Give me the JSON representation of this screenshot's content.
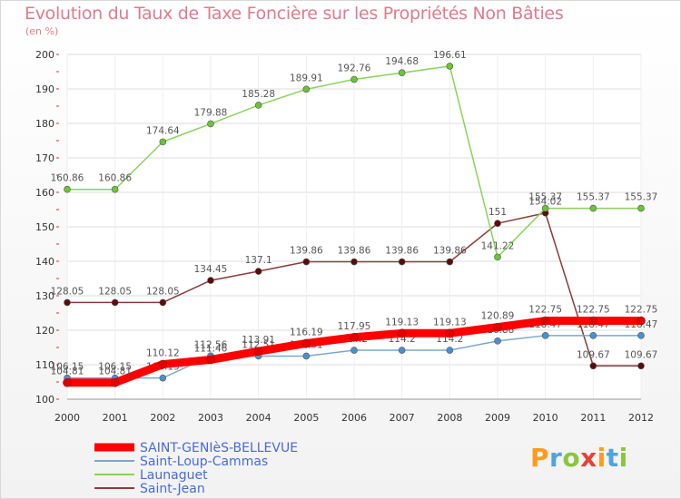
{
  "chart_data": {
    "type": "line",
    "title": "Evolution du Taux de Taxe Foncière sur les Propriétés Non Bâties",
    "ylabel": "(en %)",
    "ylim": [
      100,
      200
    ],
    "yticks": [
      "100",
      "110",
      "120",
      "130",
      "140",
      "150",
      "160",
      "170",
      "180",
      "190",
      "200"
    ],
    "x": [
      "2000",
      "2001",
      "2002",
      "2003",
      "2004",
      "2005",
      "2006",
      "2007",
      "2008",
      "2009",
      "2010",
      "2011",
      "2012"
    ],
    "series": [
      {
        "name": "Saint-Jean",
        "color": "#8b3a3a",
        "marker": "#5a0c0c",
        "values": [
          128.05,
          128.05,
          128.05,
          134.45,
          137.1,
          139.86,
          139.86,
          139.86,
          139.86,
          151,
          154.02,
          109.67,
          109.67
        ],
        "labels": [
          "128.05",
          "128.05",
          "128.05",
          "134.45",
          "137.1",
          "139.86",
          "139.86",
          "139.86",
          "139.86",
          "151",
          "154.02",
          "109.67",
          "109.67"
        ]
      },
      {
        "name": "Launaguet",
        "color": "#88d35a",
        "marker": "#6cc436",
        "values": [
          160.86,
          160.86,
          174.64,
          179.88,
          185.28,
          189.91,
          192.76,
          194.68,
          196.61,
          141.22,
          155.37,
          155.37,
          155.37
        ],
        "labels": [
          "160.86",
          "160.86",
          "174.64",
          "179.88",
          "185.28",
          "189.91",
          "192.76",
          "194.68",
          "196.61",
          "141.22",
          "155.37",
          "155.37",
          "155.37"
        ]
      },
      {
        "name": "Saint-Loup-Cammas",
        "color": "#7ba7cc",
        "marker": "#4a90d0",
        "values": [
          106.15,
          106.15,
          106.15,
          112.56,
          112.51,
          112.51,
          114.2,
          114.2,
          114.2,
          116.88,
          118.47,
          118.47,
          118.47
        ],
        "labels": [
          "106.15",
          "106.15",
          "106.15",
          "112.56",
          "112.51",
          "112.51",
          "114.2",
          "114.2",
          "114.2",
          "116.88",
          "118.47",
          "118.47",
          "118.47"
        ]
      },
      {
        "name": "SAINT-GENIèS-BELLEVUE",
        "color": "#ff0000",
        "marker": "#e00000",
        "values": [
          104.81,
          104.81,
          110.12,
          111.46,
          113.91,
          116.19,
          117.95,
          119.13,
          119.13,
          120.89,
          122.75,
          122.75,
          122.75
        ],
        "labels": [
          "104.81",
          "104.81",
          "110.12",
          "111.46",
          "113.91",
          "116.19",
          "117.95",
          "119.13",
          "119.13",
          "120.89",
          "122.75",
          "122.75",
          "122.75"
        ]
      }
    ],
    "legend_order": [
      "SAINT-GENIèS-BELLEVUE",
      "Saint-Loup-Cammas",
      "Launaguet",
      "Saint-Jean"
    ],
    "legend_position": "bottom-left"
  },
  "logo": {
    "letters": [
      "P",
      "r",
      "o",
      "x",
      "i",
      "t",
      "i"
    ],
    "colors": [
      "#ff9a1f",
      "#4fa3e0",
      "#8bc53f",
      "#e2443a",
      "#ff9a1f",
      "#4fa3e0",
      "#8bc53f"
    ]
  }
}
